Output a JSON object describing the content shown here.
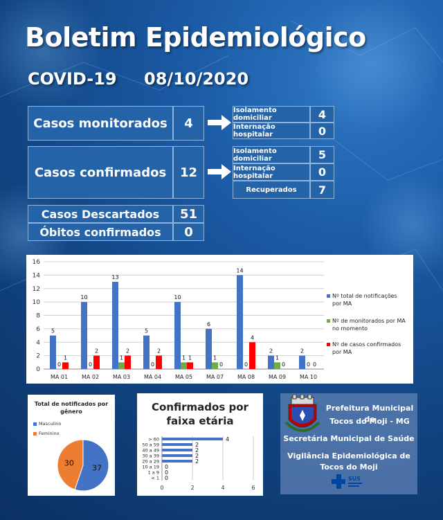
{
  "header": {
    "title": "Boletim Epidemiológico",
    "disease": "COVID-19",
    "date": "08/10/2020"
  },
  "monitored": {
    "label": "Casos monitorados",
    "value": "4",
    "details": [
      {
        "label": "Isolamento domiciliar",
        "value": "4"
      },
      {
        "label": "Internação hospitalar",
        "value": "0"
      }
    ]
  },
  "confirmed": {
    "label": "Casos confirmados",
    "value": "12",
    "details": [
      {
        "label": "Isolamento domiciliar",
        "value": "5"
      },
      {
        "label": "Internação hospitalar",
        "value": "0"
      },
      {
        "label": "Recuperados",
        "value": "7"
      }
    ]
  },
  "discarded": {
    "label": "Casos Descartados",
    "value": "51"
  },
  "deaths": {
    "label": "Óbitos confirmados",
    "value": "0"
  },
  "chart_data": [
    {
      "type": "bar",
      "categories": [
        "MA 01",
        "MA 02",
        "MA 03",
        "MA 04",
        "MA 05",
        "MA 07",
        "MA 08",
        "MA 09",
        "MA 10"
      ],
      "ylim": [
        0,
        16
      ],
      "yticks": [
        0,
        2,
        4,
        6,
        8,
        10,
        12,
        14,
        16
      ],
      "series": [
        {
          "name": "Nº total de notificações por MA",
          "color": "#4472c4",
          "values": [
            5,
            10,
            13,
            5,
            10,
            6,
            14,
            2,
            2
          ]
        },
        {
          "name": "Nº de monitorados por MA no momento",
          "color": "#70ad47",
          "values": [
            0,
            0,
            1,
            0,
            1,
            1,
            0,
            1,
            0
          ]
        },
        {
          "name": "Nº de casos confirmados por MA",
          "color": "#ff0000",
          "values": [
            1,
            2,
            2,
            2,
            1,
            0,
            4,
            0,
            0
          ]
        }
      ]
    },
    {
      "type": "pie",
      "title": "Total de notificados por gênero",
      "slices": [
        {
          "name": "Masculino",
          "value": 37,
          "color": "#4472c4"
        },
        {
          "name": "Feminino",
          "value": 30,
          "color": "#ed7d31"
        }
      ]
    },
    {
      "type": "bar",
      "orientation": "horizontal",
      "title": "Confirmados por faixa etária",
      "categories": [
        "> 60",
        "50 a 59",
        "40 a 49",
        "30 a 39",
        "20 a 29",
        "10 a 19",
        "1 a 9",
        "< 1"
      ],
      "values": [
        4,
        2,
        2,
        2,
        2,
        0,
        0,
        0
      ],
      "xlim": [
        0,
        6
      ],
      "xticks": [
        0,
        2,
        4,
        6
      ],
      "color": "#4472c4"
    }
  ],
  "org": {
    "line1": "Prefeitura Municipal de",
    "line2": "Tocos do Moji - MG",
    "line3": "Secretária Municipal de Saúde",
    "line4": "Vigilância Epidemiológica de",
    "line5": "Tocos do Moji",
    "sus": "SUS"
  }
}
